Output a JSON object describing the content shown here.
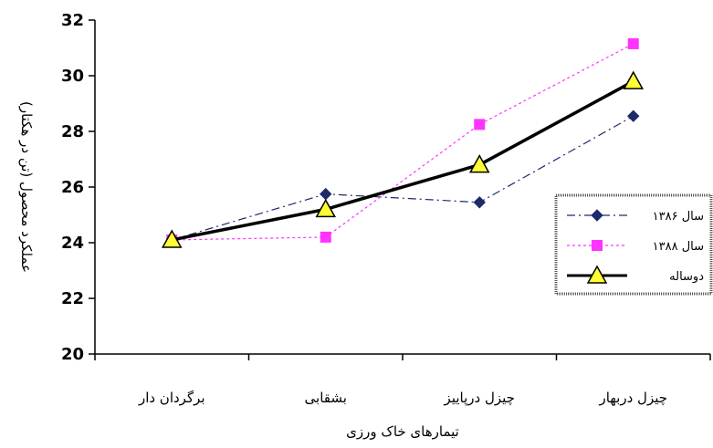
{
  "chart_data": {
    "type": "line",
    "title": "",
    "xlabel": "تیمارهای خاک ورزی",
    "ylabel": "عملکرد محصول (تن در هکتار)",
    "categories": [
      "برگردان دار",
      "بشقابی",
      "چیزل درپاییز",
      "چیزل دربهار"
    ],
    "ylim": [
      20,
      32
    ],
    "yticks": [
      20,
      22,
      24,
      26,
      28,
      30,
      32
    ],
    "grid": false,
    "legend_position": "right",
    "series": [
      {
        "name": "سال ۱۳۸۶",
        "values": [
          24.1,
          25.75,
          25.45,
          28.55
        ],
        "color": "#1f2a6b",
        "line_style": "dash-dot",
        "marker": "diamond"
      },
      {
        "name": "سال ۱۳۸۸",
        "values": [
          24.1,
          24.2,
          28.25,
          31.15
        ],
        "color": "#ff33ff",
        "line_style": "dotted",
        "marker": "square"
      },
      {
        "name": "دوساله",
        "values": [
          24.1,
          25.2,
          26.8,
          29.8
        ],
        "color": "#000000",
        "line_style": "solid",
        "marker": "triangle",
        "marker_fill": "#ffff33"
      }
    ]
  }
}
